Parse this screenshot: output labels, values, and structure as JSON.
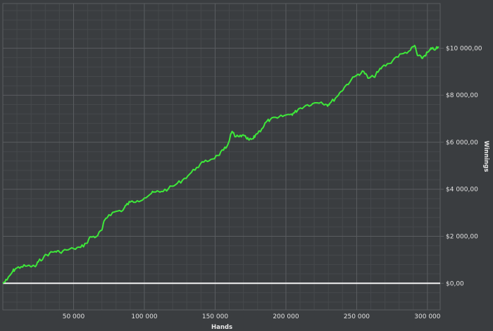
{
  "chart_data": {
    "type": "line",
    "title": "",
    "xlabel": "Hands",
    "ylabel": "Winnings",
    "xlim": [
      0,
      309000
    ],
    "ylim": [
      -1130,
      11900
    ],
    "grid": true,
    "legend": "none",
    "x_ticks": [
      {
        "value": 50000,
        "label": "50 000"
      },
      {
        "value": 100000,
        "label": "100 000"
      },
      {
        "value": 150000,
        "label": "150 000"
      },
      {
        "value": 200000,
        "label": "200 000"
      },
      {
        "value": 250000,
        "label": "250 000"
      },
      {
        "value": 300000,
        "label": "300 000"
      }
    ],
    "y_ticks": [
      {
        "value": 0,
        "label": "$0,00"
      },
      {
        "value": 2000,
        "label": "$2 000,00"
      },
      {
        "value": 4000,
        "label": "$4 000,00"
      },
      {
        "value": 6000,
        "label": "$6 000,00"
      },
      {
        "value": 8000,
        "label": "$8 000,00"
      },
      {
        "value": 10000,
        "label": "$10 000,00"
      }
    ],
    "colors": {
      "background": "#3a3d40",
      "series": "#3ee83a",
      "zero_line": "#f2f2f2",
      "grid_major": "#5a5d60",
      "grid_minor": "#46494c"
    },
    "series": [
      {
        "x": [
          0,
          3000,
          7000,
          9000,
          13000,
          17000,
          23000,
          25000,
          29000,
          33000,
          37000,
          40000,
          45000,
          50000,
          55000,
          59000,
          62000,
          66000,
          70000,
          72000,
          75000,
          80000,
          85000,
          87000,
          90000,
          95000,
          100000,
          105000,
          108000,
          112000,
          117000,
          122000,
          127000,
          132000,
          137000,
          142000,
          147000,
          152000,
          156000,
          158000,
          162000,
          164000,
          167000,
          169000,
          172000,
          174000,
          177000,
          179000,
          183000,
          186000,
          189000,
          194000,
          199000,
          204000,
          206000,
          209000,
          214000,
          219000,
          225000,
          229000,
          231000,
          235000,
          239000,
          242000,
          246000,
          251000,
          255000,
          258000,
          262000,
          265000,
          268000,
          273000,
          278000,
          283000,
          288000,
          291000,
          293000,
          296000,
          298000,
          301000,
          303000,
          306000,
          308000
        ],
        "y": [
          0,
          142,
          510,
          623,
          708,
          737,
          708,
          907,
          1133,
          1275,
          1360,
          1332,
          1417,
          1473,
          1530,
          1700,
          1983,
          1983,
          2266,
          2691,
          2918,
          3060,
          3116,
          3315,
          3456,
          3513,
          3626,
          3825,
          3881,
          3910,
          4023,
          4193,
          4391,
          4646,
          4929,
          5156,
          5270,
          5439,
          5666,
          5779,
          6459,
          6233,
          6233,
          6289,
          6176,
          6091,
          6148,
          6346,
          6573,
          6856,
          6969,
          7026,
          7139,
          7196,
          7252,
          7422,
          7564,
          7649,
          7706,
          7592,
          7649,
          7876,
          8159,
          8386,
          8640,
          8895,
          9009,
          8725,
          8782,
          8980,
          9207,
          9349,
          9632,
          9774,
          9915,
          10114,
          9689,
          9576,
          9689,
          9859,
          9972,
          9972,
          10029
        ]
      }
    ]
  }
}
